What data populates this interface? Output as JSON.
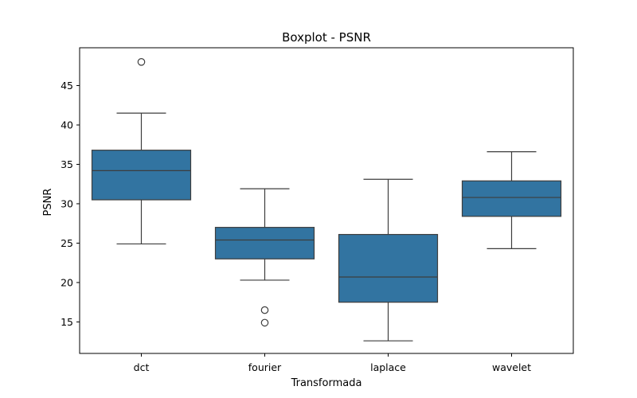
{
  "chart_data": {
    "type": "box",
    "title": "Boxplot - PSNR",
    "xlabel": "Transformada",
    "ylabel": "PSNR",
    "ylim": [
      11.0,
      49.8
    ],
    "yticks": [
      15,
      20,
      25,
      30,
      35,
      40,
      45
    ],
    "grid": false,
    "box_color": "#3274a1",
    "categories": [
      "dct",
      "fourier",
      "laplace",
      "wavelet"
    ],
    "boxes": [
      {
        "category": "dct",
        "whisker_low": 24.9,
        "q1": 30.5,
        "median": 34.2,
        "q3": 36.8,
        "whisker_high": 41.5,
        "outliers": [
          48.0
        ]
      },
      {
        "category": "fourier",
        "whisker_low": 20.3,
        "q1": 23.0,
        "median": 25.4,
        "q3": 27.0,
        "whisker_high": 31.9,
        "outliers": [
          16.5,
          14.9
        ]
      },
      {
        "category": "laplace",
        "whisker_low": 12.6,
        "q1": 17.5,
        "median": 20.7,
        "q3": 26.1,
        "whisker_high": 33.1,
        "outliers": []
      },
      {
        "category": "wavelet",
        "whisker_low": 24.3,
        "q1": 28.4,
        "median": 30.8,
        "q3": 32.9,
        "whisker_high": 36.6,
        "outliers": []
      }
    ]
  }
}
